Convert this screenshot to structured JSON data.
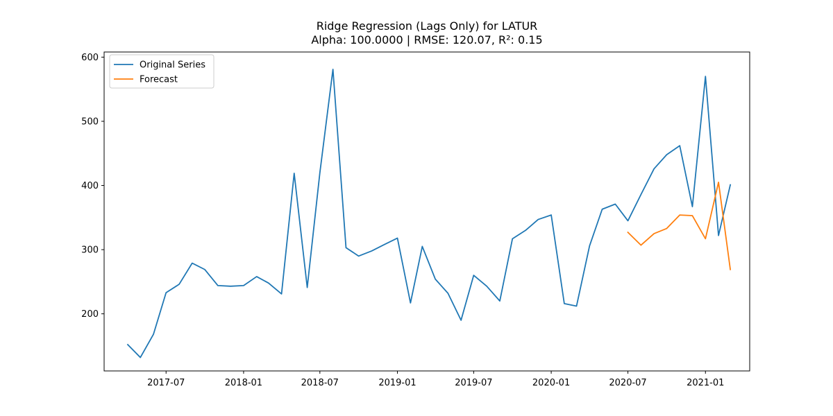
{
  "chart_data": {
    "type": "line",
    "title": "Ridge Regression (Lags Only) for LATUR",
    "subtitle": "Alpha: 100.0000 | RMSE: 120.07, R²: 0.15",
    "xlabel": "",
    "ylabel": "",
    "xlim": [
      "2017-02-04",
      "2021-04-16"
    ],
    "ylim": [
      111,
      608
    ],
    "x_ticks": [
      "2017-07-01",
      "2018-01-01",
      "2018-07-01",
      "2019-01-01",
      "2019-07-01",
      "2020-01-01",
      "2020-07-01",
      "2021-01-01"
    ],
    "x_tick_labels": [
      "2017-07",
      "2018-01",
      "2018-07",
      "2019-01",
      "2019-07",
      "2020-01",
      "2020-07",
      "2021-01"
    ],
    "y_ticks": [
      200,
      300,
      400,
      500,
      600
    ],
    "y_tick_labels": [
      "200",
      "300",
      "400",
      "500",
      "600"
    ],
    "grid": false,
    "legend": {
      "position": "top-left"
    },
    "series": [
      {
        "name": "Original Series",
        "color": "#1f77b4",
        "points": [
          [
            "2017-04-01",
            152
          ],
          [
            "2017-05-01",
            132
          ],
          [
            "2017-06-01",
            168
          ],
          [
            "2017-07-01",
            233
          ],
          [
            "2017-08-01",
            246
          ],
          [
            "2017-09-01",
            279
          ],
          [
            "2017-10-01",
            269
          ],
          [
            "2017-11-01",
            244
          ],
          [
            "2017-12-01",
            243
          ],
          [
            "2018-01-01",
            244
          ],
          [
            "2018-02-01",
            258
          ],
          [
            "2018-03-01",
            248
          ],
          [
            "2018-04-01",
            231
          ],
          [
            "2018-05-01",
            419
          ],
          [
            "2018-06-01",
            241
          ],
          [
            "2018-07-01",
            420
          ],
          [
            "2018-08-01",
            581
          ],
          [
            "2018-09-01",
            303
          ],
          [
            "2018-10-01",
            290
          ],
          [
            "2018-11-01",
            298
          ],
          [
            "2018-12-01",
            308
          ],
          [
            "2019-01-01",
            318
          ],
          [
            "2019-02-01",
            217
          ],
          [
            "2019-03-01",
            305
          ],
          [
            "2019-04-01",
            254
          ],
          [
            "2019-05-01",
            232
          ],
          [
            "2019-06-01",
            190
          ],
          [
            "2019-07-01",
            260
          ],
          [
            "2019-08-01",
            243
          ],
          [
            "2019-09-01",
            220
          ],
          [
            "2019-10-01",
            317
          ],
          [
            "2019-11-01",
            330
          ],
          [
            "2019-12-01",
            347
          ],
          [
            "2020-01-01",
            354
          ],
          [
            "2020-02-01",
            216
          ],
          [
            "2020-03-01",
            212
          ],
          [
            "2020-04-01",
            306
          ],
          [
            "2020-05-01",
            363
          ],
          [
            "2020-06-01",
            371
          ],
          [
            "2020-07-01",
            345
          ],
          [
            "2020-08-01",
            386
          ],
          [
            "2020-09-01",
            426
          ],
          [
            "2020-10-01",
            448
          ],
          [
            "2020-11-01",
            462
          ],
          [
            "2020-12-01",
            367
          ],
          [
            "2021-01-01",
            570
          ],
          [
            "2021-02-01",
            322
          ],
          [
            "2021-03-01",
            401
          ]
        ]
      },
      {
        "name": "Forecast",
        "color": "#ff7f0e",
        "points": [
          [
            "2020-07-01",
            327
          ],
          [
            "2020-08-01",
            307
          ],
          [
            "2020-09-01",
            325
          ],
          [
            "2020-10-01",
            333
          ],
          [
            "2020-11-01",
            354
          ],
          [
            "2020-12-01",
            353
          ],
          [
            "2021-01-01",
            317
          ],
          [
            "2021-02-01",
            405
          ],
          [
            "2021-03-01",
            269
          ]
        ]
      }
    ]
  }
}
